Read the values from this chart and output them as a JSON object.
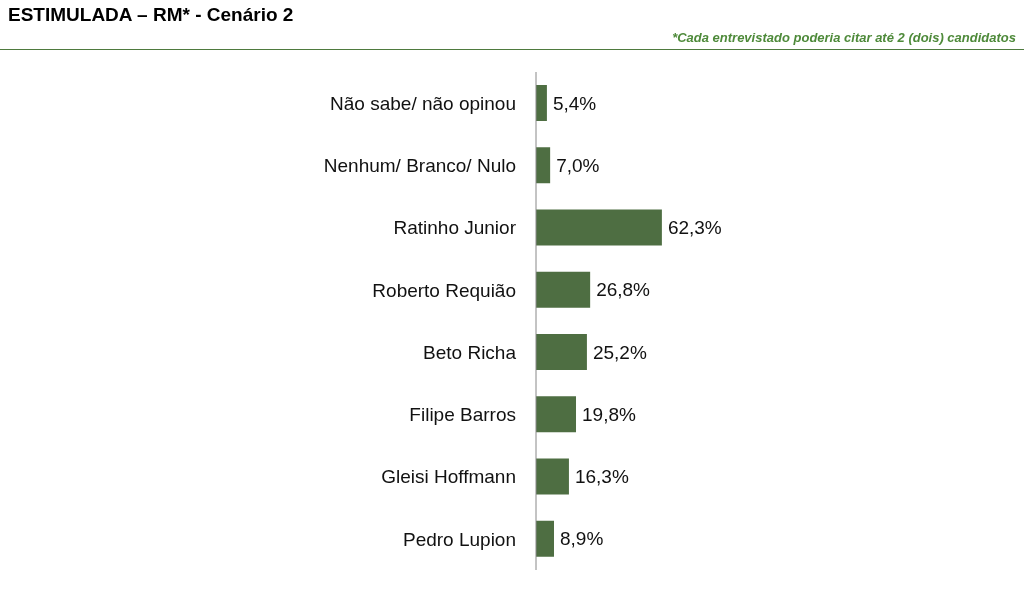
{
  "chart_data": {
    "type": "bar",
    "orientation": "horizontal",
    "title": "ESTIMULADA – RM* - Cenário 2",
    "subtitle": "*Cada entrevistado poderia citar até 2 (dois) candidatos",
    "categories": [
      "Não sabe/ não opinou",
      "Nenhum/ Branco/ Nulo",
      "Ratinho Junior",
      "Roberto Requião",
      "Beto Richa",
      "Filipe Barros",
      "Gleisi Hoffmann",
      "Pedro Lupion"
    ],
    "values": [
      5.4,
      7.0,
      62.3,
      26.8,
      25.2,
      19.8,
      16.3,
      8.9
    ],
    "value_labels": [
      "5,4%",
      "7,0%",
      "62,3%",
      "26,8%",
      "25,2%",
      "19,8%",
      "16,3%",
      "8,9%"
    ],
    "color": "#4e6e42",
    "tick_labels": "y"
  }
}
